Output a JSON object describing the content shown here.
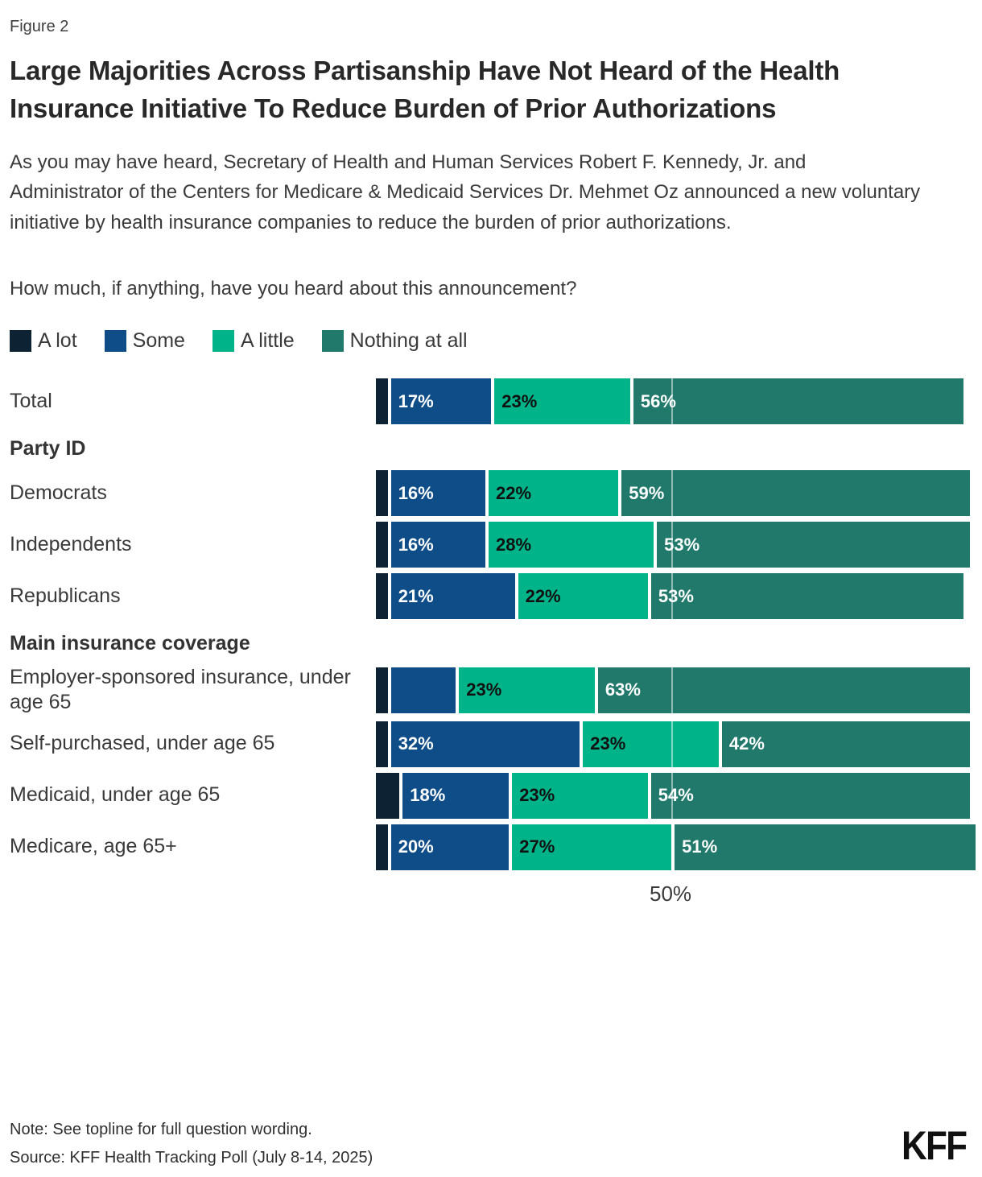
{
  "figure_label": "Figure 2",
  "title": "Large Majorities Across Partisanship Have Not Heard of the Health Insurance Initiative To Reduce Burden of Prior Authorizations",
  "description": "As you may have heard, Secretary of Health and Human Services Robert F. Kennedy, Jr. and Administrator of the Centers for Medicare & Medicaid Services Dr. Mehmet Oz announced a new voluntary initiative by health insurance companies to reduce the burden of prior authorizations.",
  "question": "How much, if anything, have you heard about this announcement?",
  "legend": [
    {
      "label": "A lot",
      "color": "#0d2334"
    },
    {
      "label": "Some",
      "color": "#0e4d88"
    },
    {
      "label": "A little",
      "color": "#00b389"
    },
    {
      "label": "Nothing at all",
      "color": "#21796b"
    }
  ],
  "chart_data": {
    "type": "bar",
    "stacked": true,
    "orientation": "horizontal",
    "xlim": [
      0,
      100
    ],
    "grid": "single-line",
    "gridline": {
      "value": 50,
      "tick_label": "50%"
    },
    "series_names": [
      "A lot",
      "Some",
      "A little",
      "Nothing at all"
    ],
    "colors": [
      "#0d2334",
      "#0e4d88",
      "#00b389",
      "#21796b"
    ],
    "text_colors": [
      "#ffffff",
      "#ffffff",
      "#111111",
      "#ffffff"
    ],
    "rows": [
      {
        "kind": "data",
        "label": "Total",
        "values": [
          2,
          17,
          23,
          56
        ],
        "labels": [
          "",
          "17%",
          "23%",
          "56%"
        ]
      },
      {
        "kind": "section",
        "label": "Party ID"
      },
      {
        "kind": "data",
        "label": "Democrats",
        "values": [
          2,
          16,
          22,
          59
        ],
        "labels": [
          "",
          "16%",
          "22%",
          "59%"
        ]
      },
      {
        "kind": "data",
        "label": "Independents",
        "values": [
          2,
          16,
          28,
          53
        ],
        "labels": [
          "",
          "16%",
          "28%",
          "53%"
        ]
      },
      {
        "kind": "data",
        "label": "Republicans",
        "values": [
          2,
          21,
          22,
          53
        ],
        "labels": [
          "",
          "21%",
          "22%",
          "53%"
        ]
      },
      {
        "kind": "section",
        "label": "Main insurance coverage"
      },
      {
        "kind": "data",
        "label": "Employer-sponsored insurance, under age 65",
        "values": [
          2,
          11,
          23,
          63
        ],
        "labels": [
          "",
          "",
          "23%",
          "63%"
        ]
      },
      {
        "kind": "data",
        "label": "Self-purchased, under age 65",
        "values": [
          2,
          32,
          23,
          42
        ],
        "labels": [
          "",
          "32%",
          "23%",
          "42%"
        ]
      },
      {
        "kind": "data",
        "label": "Medicaid, under age 65",
        "values": [
          4,
          18,
          23,
          54
        ],
        "labels": [
          "",
          "18%",
          "23%",
          "54%"
        ]
      },
      {
        "kind": "data",
        "label": "Medicare, age 65+",
        "values": [
          2,
          20,
          27,
          51
        ],
        "labels": [
          "",
          "20%",
          "27%",
          "51%"
        ]
      }
    ]
  },
  "footer": {
    "note": "Note: See topline for full question wording.",
    "source": "Source: KFF Health Tracking Poll (July 8-14, 2025)",
    "logo": "KFF"
  }
}
